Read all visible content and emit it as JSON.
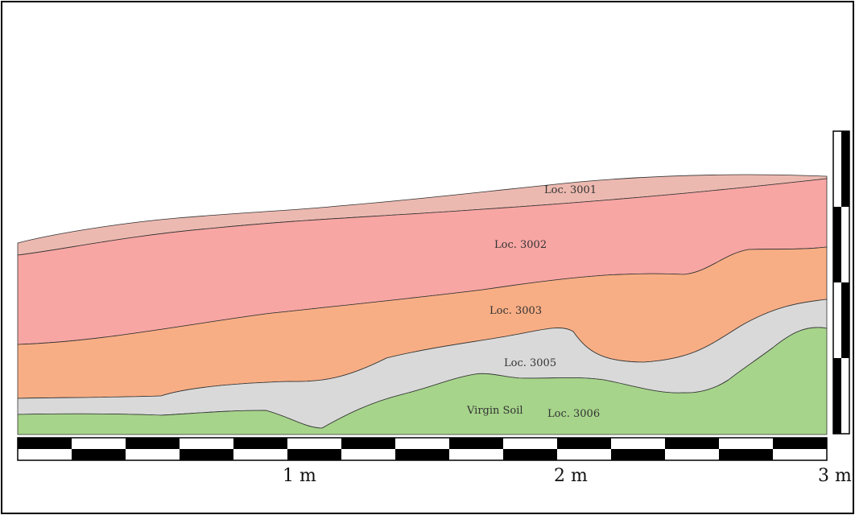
{
  "section": {
    "layers": [
      {
        "key": "loc3001",
        "label": "Loc. 3001",
        "color": "#ecb9b0"
      },
      {
        "key": "loc3002",
        "label": "Loc. 3002",
        "color": "#f7a6a3"
      },
      {
        "key": "loc3003",
        "label": "Loc. 3003",
        "color": "#f8ae85"
      },
      {
        "key": "loc3005",
        "label": "Loc. 3005",
        "color": "#d9d9d9"
      },
      {
        "key": "loc3006",
        "label": "Loc. 3006",
        "color": "#a6d48b"
      }
    ],
    "virgin_soil_label": "Virgin Soil",
    "outline_color": "#333333"
  },
  "scale": {
    "labels": [
      "1 m",
      "2 m",
      "3 m"
    ],
    "bar_color": "#000000"
  }
}
